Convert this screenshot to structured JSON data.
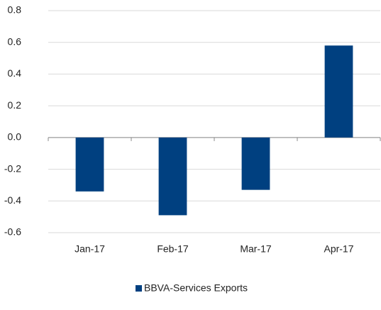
{
  "chart_data": {
    "type": "bar",
    "categories": [
      "Jan-17",
      "Feb-17",
      "Mar-17",
      "Apr-17"
    ],
    "series": [
      {
        "name": "BBVA-Services Exports",
        "color": "#004080",
        "values": [
          -0.34,
          -0.49,
          -0.33,
          0.58
        ]
      }
    ],
    "ylim": [
      -0.6,
      0.8
    ],
    "yticks": [
      -0.6,
      -0.4,
      -0.2,
      {
        "value": 0,
        "label": "0.0"
      },
      0.2,
      0.4,
      0.6,
      0.8
    ],
    "grid": true,
    "legend": "bottom"
  }
}
